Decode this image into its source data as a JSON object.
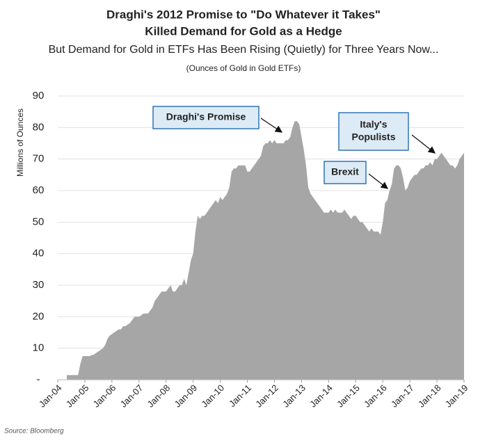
{
  "chart_data": {
    "type": "area",
    "title": [
      "Draghi's 2012 Promise to \"Do Whatever it Takes\"",
      "Killed Demand for Gold as a Hedge"
    ],
    "subtitle": "But Demand for Gold in ETFs Has Been Rising (Quietly) for Three Years Now...",
    "note": "(Ounces of Gold in Gold ETFs)",
    "y_label": "Millions of Ounces",
    "source": "Source:  Bloomberg",
    "color": "#a6a6a6",
    "grid": true,
    "ylim": [
      0,
      90
    ],
    "yticks": [
      {
        "value": 0,
        "label": "-"
      },
      10,
      20,
      30,
      40,
      50,
      60,
      70,
      80,
      90
    ],
    "xlim": [
      "2004-01",
      "2019-01"
    ],
    "xticks": [
      {
        "value": "2004-01",
        "label": "Jan-04"
      },
      {
        "value": "2005-01",
        "label": "Jan-05"
      },
      {
        "value": "2006-01",
        "label": "Jan-06"
      },
      {
        "value": "2007-01",
        "label": "Jan-07"
      },
      {
        "value": "2008-01",
        "label": "Jan-08"
      },
      {
        "value": "2009-01",
        "label": "Jan-09"
      },
      {
        "value": "2010-01",
        "label": "Jan-10"
      },
      {
        "value": "2011-01",
        "label": "Jan-11"
      },
      {
        "value": "2012-01",
        "label": "Jan-12"
      },
      {
        "value": "2013-01",
        "label": "Jan-13"
      },
      {
        "value": "2014-01",
        "label": "Jan-14"
      },
      {
        "value": "2015-01",
        "label": "Jan-15"
      },
      {
        "value": "2016-01",
        "label": "Jan-16"
      },
      {
        "value": "2017-01",
        "label": "Jan-17"
      },
      {
        "value": "2018-01",
        "label": "Jan-18"
      },
      {
        "value": "2019-01",
        "label": "Jan-19"
      }
    ],
    "x": [
      "2004-05",
      "2004-06",
      "2004-07",
      "2004-08",
      "2004-09",
      "2004-10",
      "2004-11",
      "2004-12",
      "2005-01",
      "2005-02",
      "2005-03",
      "2005-04",
      "2005-05",
      "2005-06",
      "2005-07",
      "2005-08",
      "2005-09",
      "2005-10",
      "2005-11",
      "2005-12",
      "2006-01",
      "2006-02",
      "2006-03",
      "2006-04",
      "2006-05",
      "2006-06",
      "2006-07",
      "2006-08",
      "2006-09",
      "2006-10",
      "2006-11",
      "2006-12",
      "2007-01",
      "2007-02",
      "2007-03",
      "2007-04",
      "2007-05",
      "2007-06",
      "2007-07",
      "2007-08",
      "2007-09",
      "2007-10",
      "2007-11",
      "2007-12",
      "2008-01",
      "2008-02",
      "2008-03",
      "2008-04",
      "2008-05",
      "2008-06",
      "2008-07",
      "2008-08",
      "2008-09",
      "2008-10",
      "2008-11",
      "2008-12",
      "2009-01",
      "2009-02",
      "2009-03",
      "2009-04",
      "2009-05",
      "2009-06",
      "2009-07",
      "2009-08",
      "2009-09",
      "2009-10",
      "2009-11",
      "2009-12",
      "2010-01",
      "2010-02",
      "2010-03",
      "2010-04",
      "2010-05",
      "2010-06",
      "2010-07",
      "2010-08",
      "2010-09",
      "2010-10",
      "2010-11",
      "2010-12",
      "2011-01",
      "2011-02",
      "2011-03",
      "2011-04",
      "2011-05",
      "2011-06",
      "2011-07",
      "2011-08",
      "2011-09",
      "2011-10",
      "2011-11",
      "2011-12",
      "2012-01",
      "2012-02",
      "2012-03",
      "2012-04",
      "2012-05",
      "2012-06",
      "2012-07",
      "2012-08",
      "2012-09",
      "2012-10",
      "2012-11",
      "2012-12",
      "2013-01",
      "2013-02",
      "2013-03",
      "2013-04",
      "2013-05",
      "2013-06",
      "2013-07",
      "2013-08",
      "2013-09",
      "2013-10",
      "2013-11",
      "2013-12",
      "2014-01",
      "2014-02",
      "2014-03",
      "2014-04",
      "2014-05",
      "2014-06",
      "2014-07",
      "2014-08",
      "2014-09",
      "2014-10",
      "2014-11",
      "2014-12",
      "2015-01",
      "2015-02",
      "2015-03",
      "2015-04",
      "2015-05",
      "2015-06",
      "2015-07",
      "2015-08",
      "2015-09",
      "2015-10",
      "2015-11",
      "2015-12",
      "2016-01",
      "2016-02",
      "2016-03",
      "2016-04",
      "2016-05",
      "2016-06",
      "2016-07",
      "2016-08",
      "2016-09",
      "2016-10",
      "2016-11",
      "2016-12",
      "2017-01",
      "2017-02",
      "2017-03",
      "2017-04",
      "2017-05",
      "2017-06",
      "2017-07",
      "2017-08",
      "2017-09",
      "2017-10",
      "2017-11",
      "2017-12",
      "2018-01",
      "2018-02",
      "2018-03",
      "2018-04",
      "2018-05",
      "2018-06",
      "2018-07",
      "2018-08",
      "2018-09",
      "2018-10",
      "2018-11",
      "2018-12",
      "2019-01"
    ],
    "values": [
      1.5,
      1.5,
      1.5,
      1.5,
      1.5,
      1.5,
      5,
      7.5,
      7.5,
      7.5,
      7.5,
      7.8,
      8,
      8.5,
      9,
      9.5,
      10,
      11,
      13,
      14,
      14.5,
      15,
      15.5,
      16,
      16,
      17,
      17,
      17.5,
      18,
      19,
      20,
      20,
      20,
      20.5,
      21,
      21,
      21,
      22,
      23,
      25,
      26,
      27,
      28,
      28,
      28,
      29,
      30,
      28,
      28,
      29,
      30,
      30,
      32,
      30,
      34,
      38,
      40,
      47,
      52,
      51,
      52,
      52,
      53,
      54,
      55,
      56,
      57,
      56,
      58,
      57,
      58,
      59,
      61,
      66,
      67,
      67,
      68,
      68,
      68,
      68,
      66,
      66,
      67,
      68,
      69,
      70,
      71,
      74,
      75,
      75,
      76,
      75,
      76,
      75,
      75,
      75,
      75,
      76,
      76,
      77,
      80,
      82,
      82,
      81,
      77,
      73,
      68,
      61,
      59,
      58,
      57,
      56,
      55,
      54,
      53,
      53,
      53,
      54,
      53,
      54,
      53,
      53,
      53,
      54,
      53,
      52,
      51,
      52,
      52,
      51,
      50,
      50,
      49,
      48,
      47,
      48,
      47,
      47,
      47,
      46,
      50,
      56,
      57,
      60,
      62,
      67,
      68,
      68,
      67,
      64,
      60,
      61,
      63,
      64,
      65,
      65,
      66,
      67,
      67,
      68,
      68,
      69,
      68,
      70,
      70,
      71,
      72,
      71,
      70,
      69,
      68,
      68,
      67,
      68,
      70,
      71,
      72
    ],
    "annotations": [
      {
        "text": [
          "Draghi's Promise"
        ]
      },
      {
        "text": [
          "Italy's",
          "Populists"
        ]
      },
      {
        "text": [
          "Brexit"
        ]
      }
    ]
  }
}
